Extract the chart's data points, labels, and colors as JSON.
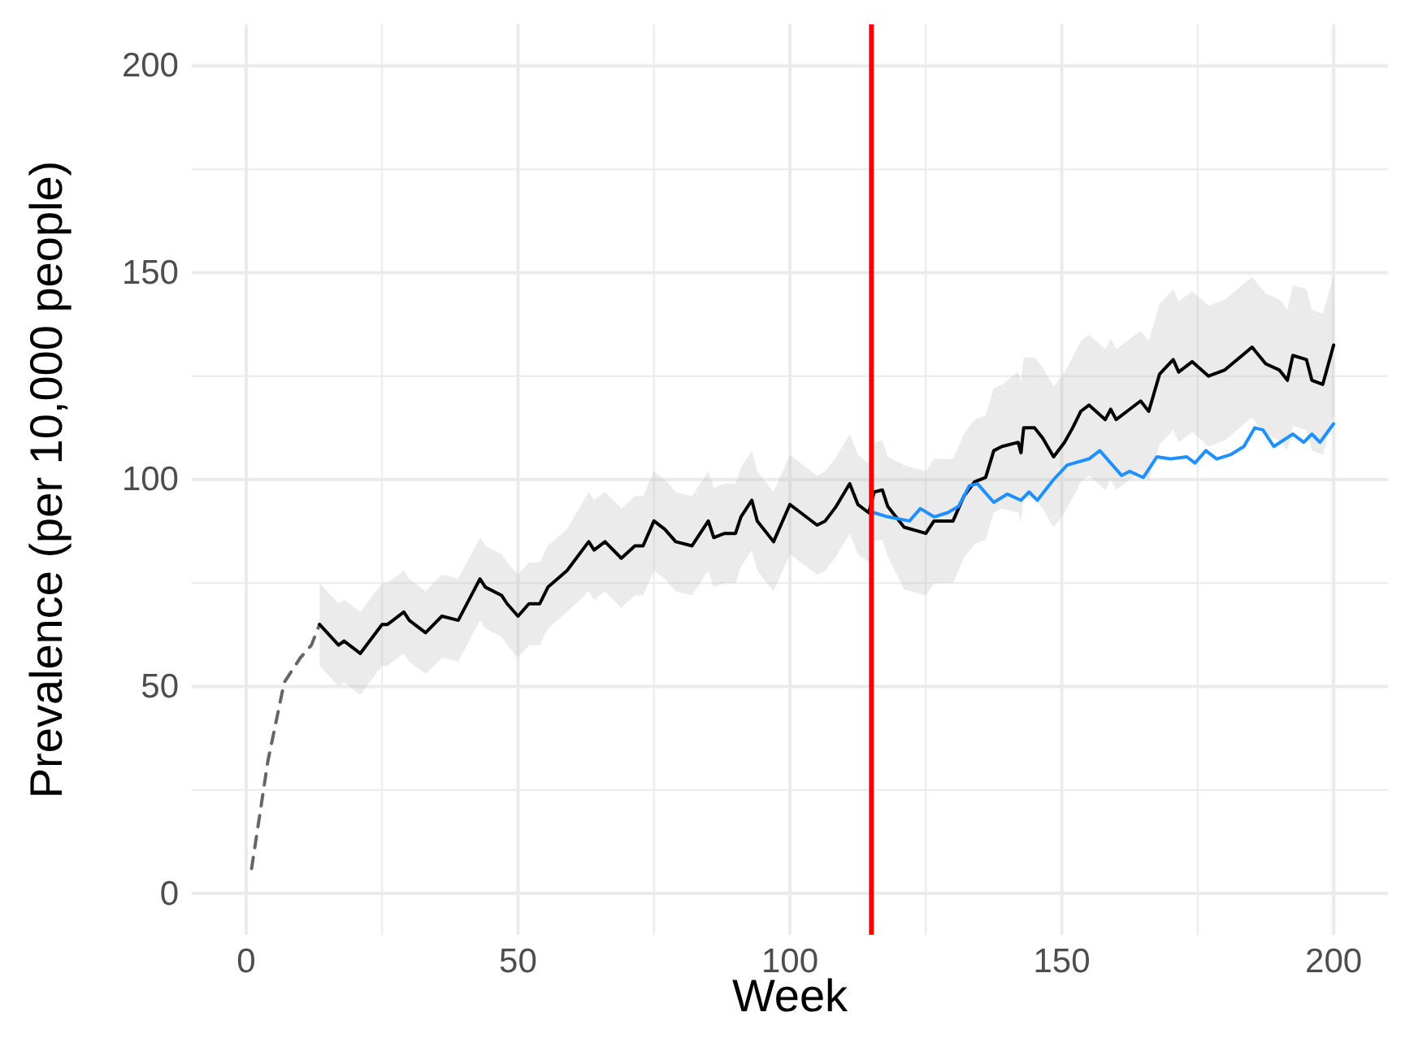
{
  "chart_data": {
    "type": "line",
    "xlabel": "Week",
    "ylabel": "Prevalence (per 10,000 people)",
    "xlim": [
      -10,
      210
    ],
    "ylim": [
      -10,
      210
    ],
    "xticks": [
      0,
      {
        "value": 25,
        "label": null
      },
      50,
      {
        "value": 75,
        "label": null
      },
      100,
      {
        "value": 125,
        "label": null
      },
      150,
      {
        "value": 175,
        "label": null
      },
      200
    ],
    "yticks": [
      0,
      {
        "value": 25,
        "label": null
      },
      50,
      {
        "value": 75,
        "label": null
      },
      100,
      {
        "value": 125,
        "label": null
      },
      150,
      {
        "value": 175,
        "label": null
      },
      200
    ],
    "grid": true,
    "ref_lines": [
      {
        "axis": "x",
        "value": 115,
        "color": "#ff0000"
      }
    ],
    "series": [
      {
        "color": "#666666",
        "line_style": "dashed",
        "x": [
          1,
          4,
          7,
          10,
          12,
          13.5
        ],
        "values": [
          6,
          32,
          51,
          57,
          60,
          65
        ]
      },
      {
        "color": "#000000",
        "line_style": "solid",
        "x": [
          13.5,
          17,
          18,
          21,
          25,
          26,
          29,
          30,
          33,
          36,
          39,
          43,
          44,
          47,
          48,
          50,
          52,
          54,
          55.5,
          59,
          63,
          64,
          66,
          69,
          71.5,
          73,
          75,
          77,
          79,
          82,
          85,
          86,
          88,
          90,
          91,
          93,
          94,
          97,
          100,
          102,
          105,
          106.5,
          108.5,
          111,
          112.5,
          114.5,
          115.5,
          117,
          118,
          121,
          125,
          126.5,
          130,
          132,
          134,
          136,
          137.5,
          139,
          142,
          142.5,
          143,
          145,
          146.5,
          148.5,
          150.5,
          152,
          153.5,
          155,
          158,
          159,
          160,
          162,
          164.5,
          166,
          168,
          170.5,
          171.5,
          174,
          177,
          180,
          185,
          187.5,
          190,
          191.5,
          192.5,
          195,
          196,
          198,
          200
        ],
        "values": [
          65,
          60,
          61,
          58,
          65,
          65,
          68,
          66,
          63,
          67,
          66,
          76,
          74,
          72,
          70,
          67,
          70,
          70,
          74,
          78,
          85,
          83,
          85,
          81,
          84,
          84,
          90,
          88,
          85,
          84,
          90,
          86,
          87,
          87,
          91,
          95,
          90,
          85,
          94,
          92,
          89,
          90,
          93.5,
          99,
          94,
          92,
          97,
          97.5,
          93.5,
          88.5,
          87,
          90,
          90,
          96,
          99.5,
          100.5,
          107,
          108,
          109,
          106.5,
          112.5,
          112.5,
          110,
          105.5,
          109,
          112.5,
          116.5,
          118,
          114.5,
          117,
          114.5,
          116.5,
          119,
          116.5,
          125.5,
          129,
          126,
          128.5,
          125,
          126.5,
          132,
          128,
          126.5,
          124,
          130,
          129,
          124,
          123,
          132.5
        ],
        "lower": [
          55,
          50,
          51,
          48,
          55,
          55,
          58,
          56,
          53,
          57,
          56,
          66,
          64,
          62,
          60,
          57,
          60,
          60,
          64,
          68,
          73,
          71,
          73,
          69,
          72,
          72,
          78,
          76,
          73,
          72,
          78,
          74,
          75,
          75,
          79,
          83,
          78,
          73,
          82,
          80,
          77,
          78,
          81.5,
          87,
          82,
          80,
          85,
          85.5,
          81.5,
          73.5,
          72,
          75,
          75,
          81,
          84.5,
          85.5,
          92,
          93,
          92,
          89.5,
          95.5,
          95.5,
          93,
          88.5,
          92,
          95.5,
          99.5,
          101,
          97.5,
          100,
          97.5,
          99.5,
          102,
          99.5,
          108.5,
          112,
          109,
          111.5,
          108,
          109.5,
          115,
          111,
          109.5,
          107,
          113,
          112,
          107,
          106,
          115.5
        ],
        "upper": [
          75,
          70,
          71,
          68,
          75,
          75,
          78,
          76,
          73,
          77,
          76,
          86,
          84,
          82,
          80,
          77,
          80,
          80,
          84,
          88,
          97,
          95,
          97,
          93,
          96,
          96,
          102,
          100,
          97,
          96,
          102,
          98,
          99,
          99,
          103,
          107,
          102,
          97,
          106,
          104,
          101,
          102,
          105.5,
          111,
          106,
          104,
          109,
          109.5,
          105.5,
          103.5,
          102,
          105,
          105,
          111,
          114.5,
          115.5,
          122,
          123,
          126,
          123.5,
          129.5,
          129.5,
          127,
          122.5,
          126,
          129.5,
          133.5,
          135,
          131.5,
          134,
          131.5,
          133.5,
          136,
          133.5,
          142.5,
          146,
          143,
          145.5,
          142,
          143.5,
          149,
          145,
          143.5,
          141,
          147,
          146,
          141,
          140,
          149.5
        ]
      },
      {
        "color": "#1e90ff",
        "line_style": "solid",
        "x": [
          115.5,
          118,
          122,
          124,
          126.5,
          129,
          131,
          133,
          134.5,
          137.5,
          140,
          142.5,
          144,
          145.5,
          148.5,
          151,
          155,
          157,
          161,
          162.5,
          165,
          167.5,
          170,
          173,
          174.5,
          176.5,
          178.5,
          181,
          183.5,
          185.5,
          187,
          189,
          192.5,
          194.5,
          196,
          197.5,
          200
        ],
        "values": [
          92,
          91,
          90,
          93,
          91,
          92,
          93.5,
          98.5,
          99,
          94.5,
          96.5,
          95,
          97,
          95,
          100,
          103.5,
          105,
          107,
          101,
          102,
          100.5,
          105.5,
          105,
          105.5,
          104,
          107,
          105,
          106,
          108,
          112.5,
          112,
          108,
          111,
          109,
          111,
          109,
          113.5
        ]
      }
    ]
  }
}
